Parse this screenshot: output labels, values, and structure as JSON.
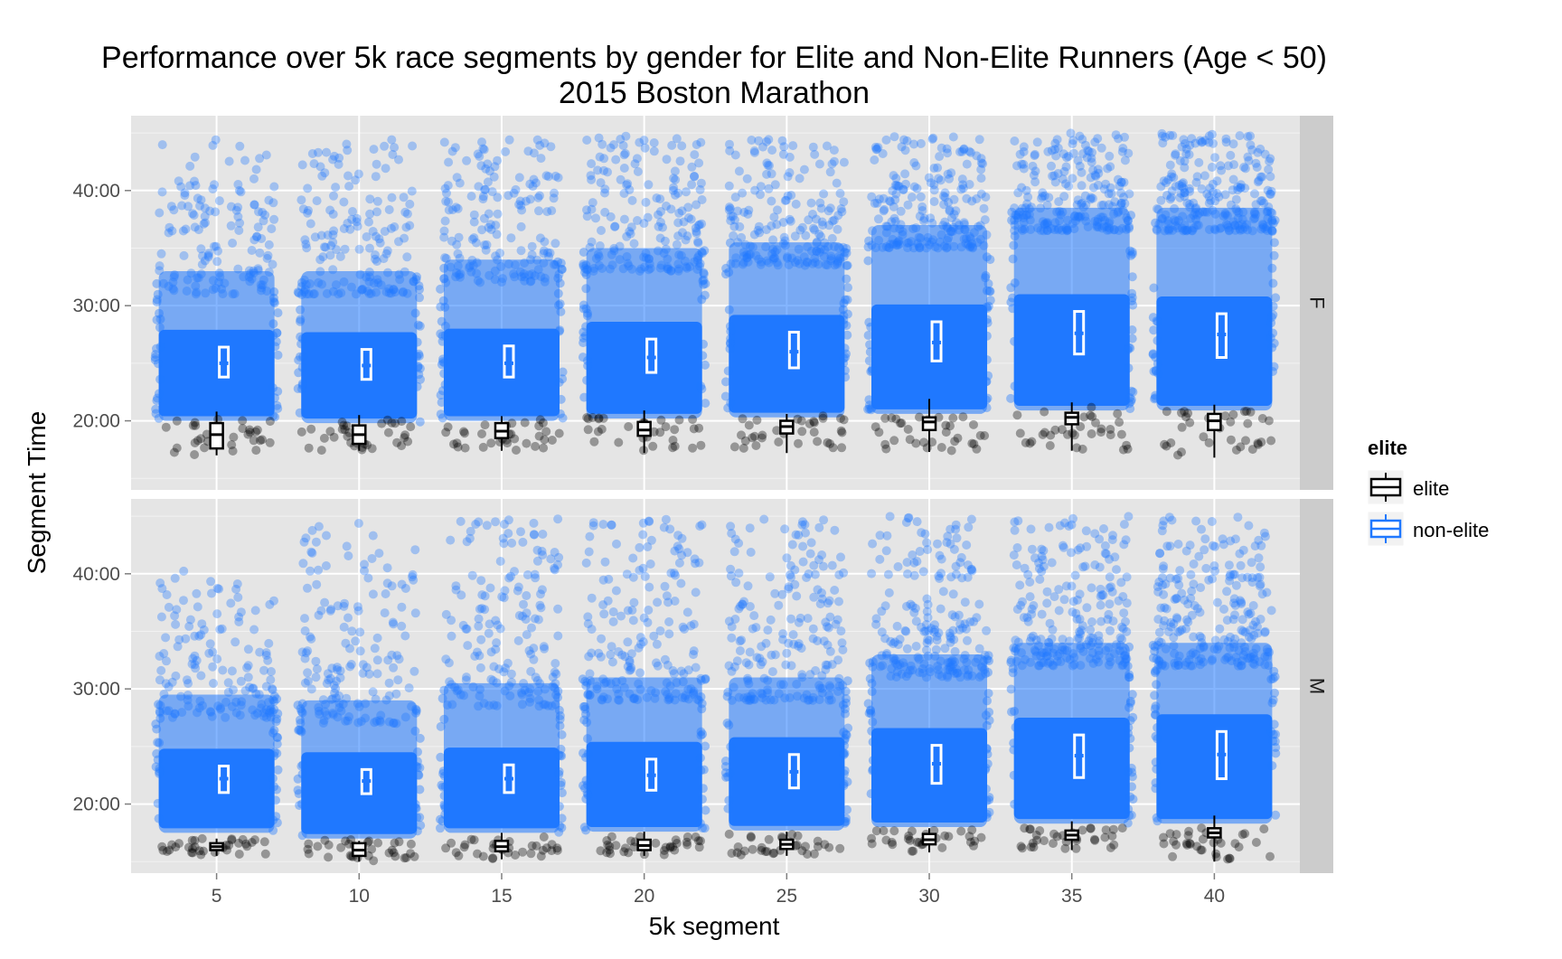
{
  "chart_data": {
    "type": "scatter",
    "title": "Performance over 5k race segments by gender for Elite and Non-Elite Runners (Age < 50)",
    "subtitle": "2015 Boston Marathon",
    "xlabel": "5k segment",
    "ylabel": "Segment Time",
    "x_ticks": [
      "5",
      "10",
      "15",
      "20",
      "25",
      "30",
      "35",
      "40"
    ],
    "y_ticks": [
      "20:00",
      "30:00",
      "40:00"
    ],
    "x_range": [
      2,
      43
    ],
    "y_range_minutes": [
      14,
      46.5
    ],
    "grid": true,
    "legend": {
      "title": "elite",
      "position": "right",
      "entries": [
        {
          "label": "elite",
          "color": "#000000"
        },
        {
          "label": "non-elite",
          "color": "#1f78ff"
        }
      ]
    },
    "facets": [
      {
        "label": "F",
        "series": [
          {
            "name": "non-elite",
            "x": [
              5,
              10,
              15,
              20,
              25,
              30,
              35,
              40
            ],
            "median": [
              25.0,
              24.8,
              25.0,
              25.5,
              26.0,
              26.8,
              27.6,
              27.5
            ],
            "q1": [
              23.8,
              23.6,
              23.8,
              24.2,
              24.6,
              25.2,
              25.8,
              25.5
            ],
            "q3": [
              26.4,
              26.2,
              26.5,
              27.1,
              27.7,
              28.6,
              29.5,
              29.3
            ],
            "body_low": [
              20.0,
              19.8,
              20.0,
              20.2,
              20.3,
              20.6,
              20.9,
              20.9
            ],
            "body_high": [
              33.0,
              33.0,
              34.0,
              35.0,
              35.5,
              37.0,
              38.5,
              38.5
            ],
            "max": [
              44.5,
              44.5,
              44.5,
              44.8,
              44.8,
              44.8,
              45.0,
              45.0
            ]
          },
          {
            "name": "elite",
            "x": [
              5,
              10,
              15,
              20,
              25,
              30,
              35,
              40
            ],
            "median": [
              18.8,
              18.8,
              19.1,
              19.2,
              19.5,
              19.9,
              20.3,
              20.0
            ],
            "q1": [
              17.6,
              18.0,
              18.5,
              18.7,
              18.9,
              19.2,
              19.7,
              19.2
            ],
            "q3": [
              19.8,
              19.6,
              19.8,
              19.9,
              20.0,
              20.3,
              20.7,
              20.6
            ],
            "min": [
              17.0,
              17.4,
              17.4,
              17.2,
              17.2,
              17.3,
              17.4,
              16.8
            ],
            "max": [
              20.8,
              20.5,
              20.4,
              20.9,
              20.6,
              21.9,
              21.6,
              21.4
            ]
          }
        ]
      },
      {
        "label": "M",
        "series": [
          {
            "name": "non-elite",
            "x": [
              5,
              10,
              15,
              20,
              25,
              30,
              35,
              40
            ],
            "median": [
              22.2,
              22.0,
              22.2,
              22.5,
              22.8,
              23.5,
              24.2,
              24.3
            ],
            "q1": [
              21.0,
              20.9,
              21.0,
              21.2,
              21.4,
              21.8,
              22.3,
              22.2
            ],
            "q3": [
              23.3,
              23.0,
              23.4,
              23.9,
              24.3,
              25.1,
              26.0,
              26.3
            ],
            "body_low": [
              17.5,
              17.0,
              17.5,
              17.6,
              17.7,
              18.0,
              18.3,
              18.3
            ],
            "body_high": [
              29.5,
              29.0,
              30.5,
              31.0,
              31.0,
              33.0,
              34.0,
              34.0
            ],
            "max": [
              40.5,
              44.5,
              44.8,
              44.8,
              44.8,
              45.0,
              45.0,
              45.0
            ]
          },
          {
            "name": "elite",
            "x": [
              5,
              10,
              15,
              20,
              25,
              30,
              35,
              40
            ],
            "median": [
              16.3,
              16.0,
              16.3,
              16.4,
              16.5,
              16.9,
              17.3,
              17.5
            ],
            "q1": [
              16.0,
              15.5,
              15.9,
              16.0,
              16.1,
              16.5,
              16.9,
              17.1
            ],
            "q3": [
              16.6,
              16.6,
              16.8,
              16.9,
              16.9,
              17.4,
              17.7,
              17.9
            ],
            "min": [
              15.5,
              15.0,
              15.2,
              15.5,
              15.5,
              15.8,
              16.0,
              15.0
            ],
            "max": [
              17.0,
              16.8,
              17.5,
              17.6,
              17.6,
              17.9,
              18.5,
              19.0
            ]
          }
        ]
      }
    ]
  }
}
